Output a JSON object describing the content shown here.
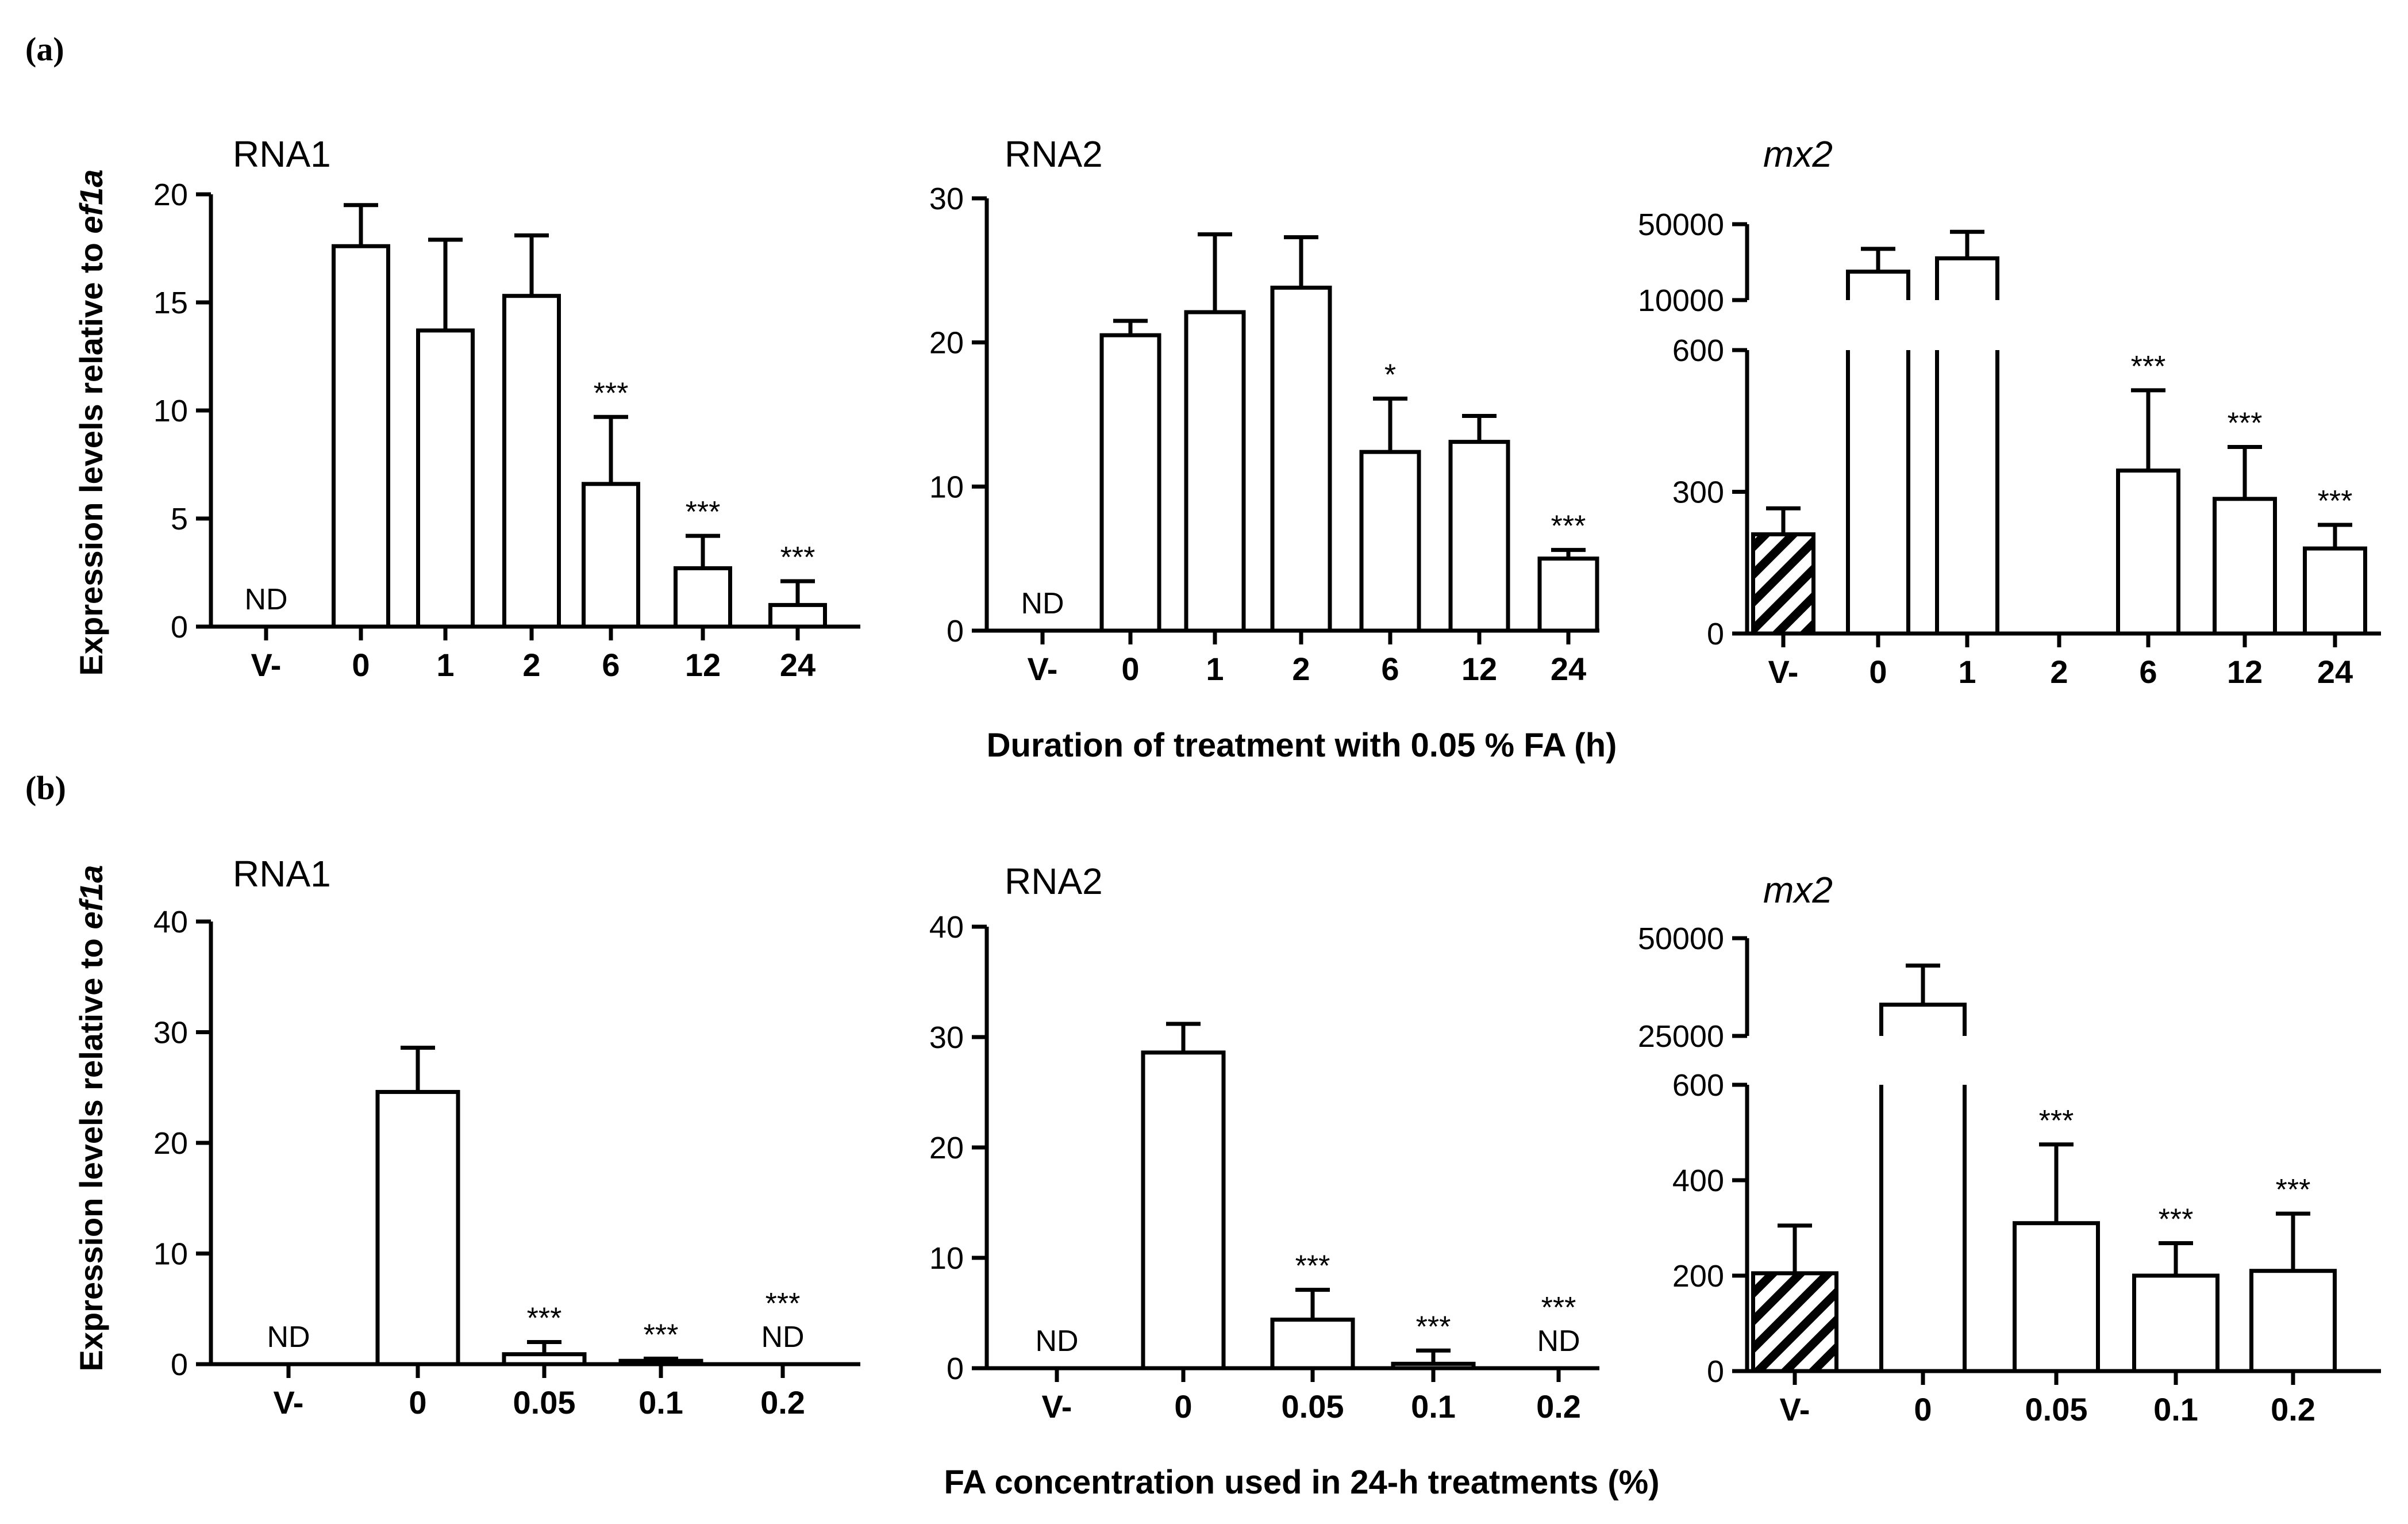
{
  "figure": {
    "panel_a_label": "(a)",
    "panel_b_label": "(b)",
    "ylabel_prefix": "Expression levels relative to ",
    "ylabel_gene": "ef1a",
    "xlabel_a": "Duration of treatment with 0.05 % FA (h)",
    "xlabel_b": "FA concentration used in 24-h treatments (%)",
    "colors": {
      "ink": "#000000",
      "bar_fill": "#ffffff"
    }
  },
  "chart_data": [
    {
      "id": "a1",
      "type": "bar",
      "title": "RNA1",
      "title_italic": false,
      "categories": [
        "V-",
        "0",
        "1",
        "2",
        "6",
        "12",
        "24"
      ],
      "values": [
        null,
        17.6,
        13.7,
        15.3,
        6.6,
        2.7,
        1.0
      ],
      "errors": [
        null,
        1.9,
        4.2,
        2.8,
        3.1,
        1.5,
        1.1
      ],
      "labels": [
        "ND",
        "",
        "",
        "",
        "***",
        "***",
        "***"
      ],
      "ylim": [
        0,
        20
      ],
      "yticks": [
        0,
        5,
        10,
        15,
        20
      ]
    },
    {
      "id": "a2",
      "type": "bar",
      "title": "RNA2",
      "title_italic": false,
      "categories": [
        "V-",
        "0",
        "1",
        "2",
        "6",
        "12",
        "24"
      ],
      "values": [
        null,
        20.5,
        22.1,
        23.8,
        12.4,
        13.1,
        5.0
      ],
      "errors": [
        null,
        1.0,
        5.4,
        3.5,
        3.7,
        1.8,
        0.6
      ],
      "labels": [
        "ND",
        "",
        "",
        "",
        "*",
        "",
        "***"
      ],
      "ylim": [
        0,
        30
      ],
      "yticks": [
        0,
        10,
        20,
        30
      ]
    },
    {
      "id": "a3",
      "type": "bar",
      "title": "mx2",
      "title_italic": true,
      "categories": [
        "V-",
        "0",
        "1",
        "2",
        "6",
        "12",
        "24"
      ],
      "values": [
        210,
        25000,
        32000,
        null,
        345,
        285,
        180
      ],
      "errors": [
        55,
        12000,
        14000,
        null,
        170,
        110,
        50
      ],
      "labels": [
        "",
        "",
        "",
        "",
        "***",
        "***",
        "***"
      ],
      "hatched": [
        true,
        false,
        false,
        false,
        false,
        false,
        false
      ],
      "ylim": [
        0,
        50000
      ],
      "axis_break": [
        600,
        10000
      ],
      "yticks": [
        0,
        300,
        600,
        10000,
        50000
      ],
      "ytick_labels": [
        "0",
        "300",
        "600",
        "10000",
        "50000"
      ]
    },
    {
      "id": "b1",
      "type": "bar",
      "title": "RNA1",
      "title_italic": false,
      "categories": [
        "V-",
        "0",
        "0.05",
        "0.1",
        "0.2"
      ],
      "values": [
        null,
        24.6,
        0.9,
        0.3,
        null
      ],
      "errors": [
        null,
        4.0,
        1.1,
        0.2,
        null
      ],
      "labels": [
        "ND",
        "",
        "***",
        "***",
        "***\nND"
      ],
      "ylim": [
        0,
        40
      ],
      "yticks": [
        0,
        10,
        20,
        30,
        40
      ]
    },
    {
      "id": "b2",
      "type": "bar",
      "title": "RNA2",
      "title_italic": false,
      "categories": [
        "V-",
        "0",
        "0.05",
        "0.1",
        "0.2"
      ],
      "values": [
        null,
        28.6,
        4.4,
        0.4,
        null
      ],
      "errors": [
        null,
        2.6,
        2.7,
        1.2,
        null
      ],
      "labels": [
        "ND",
        "",
        "***",
        "***",
        "***\nND"
      ],
      "ylim": [
        0,
        40
      ],
      "yticks": [
        0,
        10,
        20,
        30,
        40
      ]
    },
    {
      "id": "b3",
      "type": "bar",
      "title": "mx2",
      "title_italic": true,
      "categories": [
        "V-",
        "0",
        "0.05",
        "0.1",
        "0.2"
      ],
      "values": [
        205,
        33000,
        310,
        200,
        210
      ],
      "errors": [
        100,
        10000,
        165,
        68,
        120
      ],
      "labels": [
        "",
        "",
        "***",
        "***",
        "***"
      ],
      "hatched": [
        true,
        false,
        false,
        false,
        false
      ],
      "ylim": [
        0,
        50000
      ],
      "axis_break": [
        600,
        25000
      ],
      "yticks": [
        0,
        200,
        400,
        600,
        25000,
        50000
      ],
      "ytick_labels": [
        "0",
        "200",
        "400",
        "600",
        "25000",
        "50000"
      ]
    }
  ]
}
